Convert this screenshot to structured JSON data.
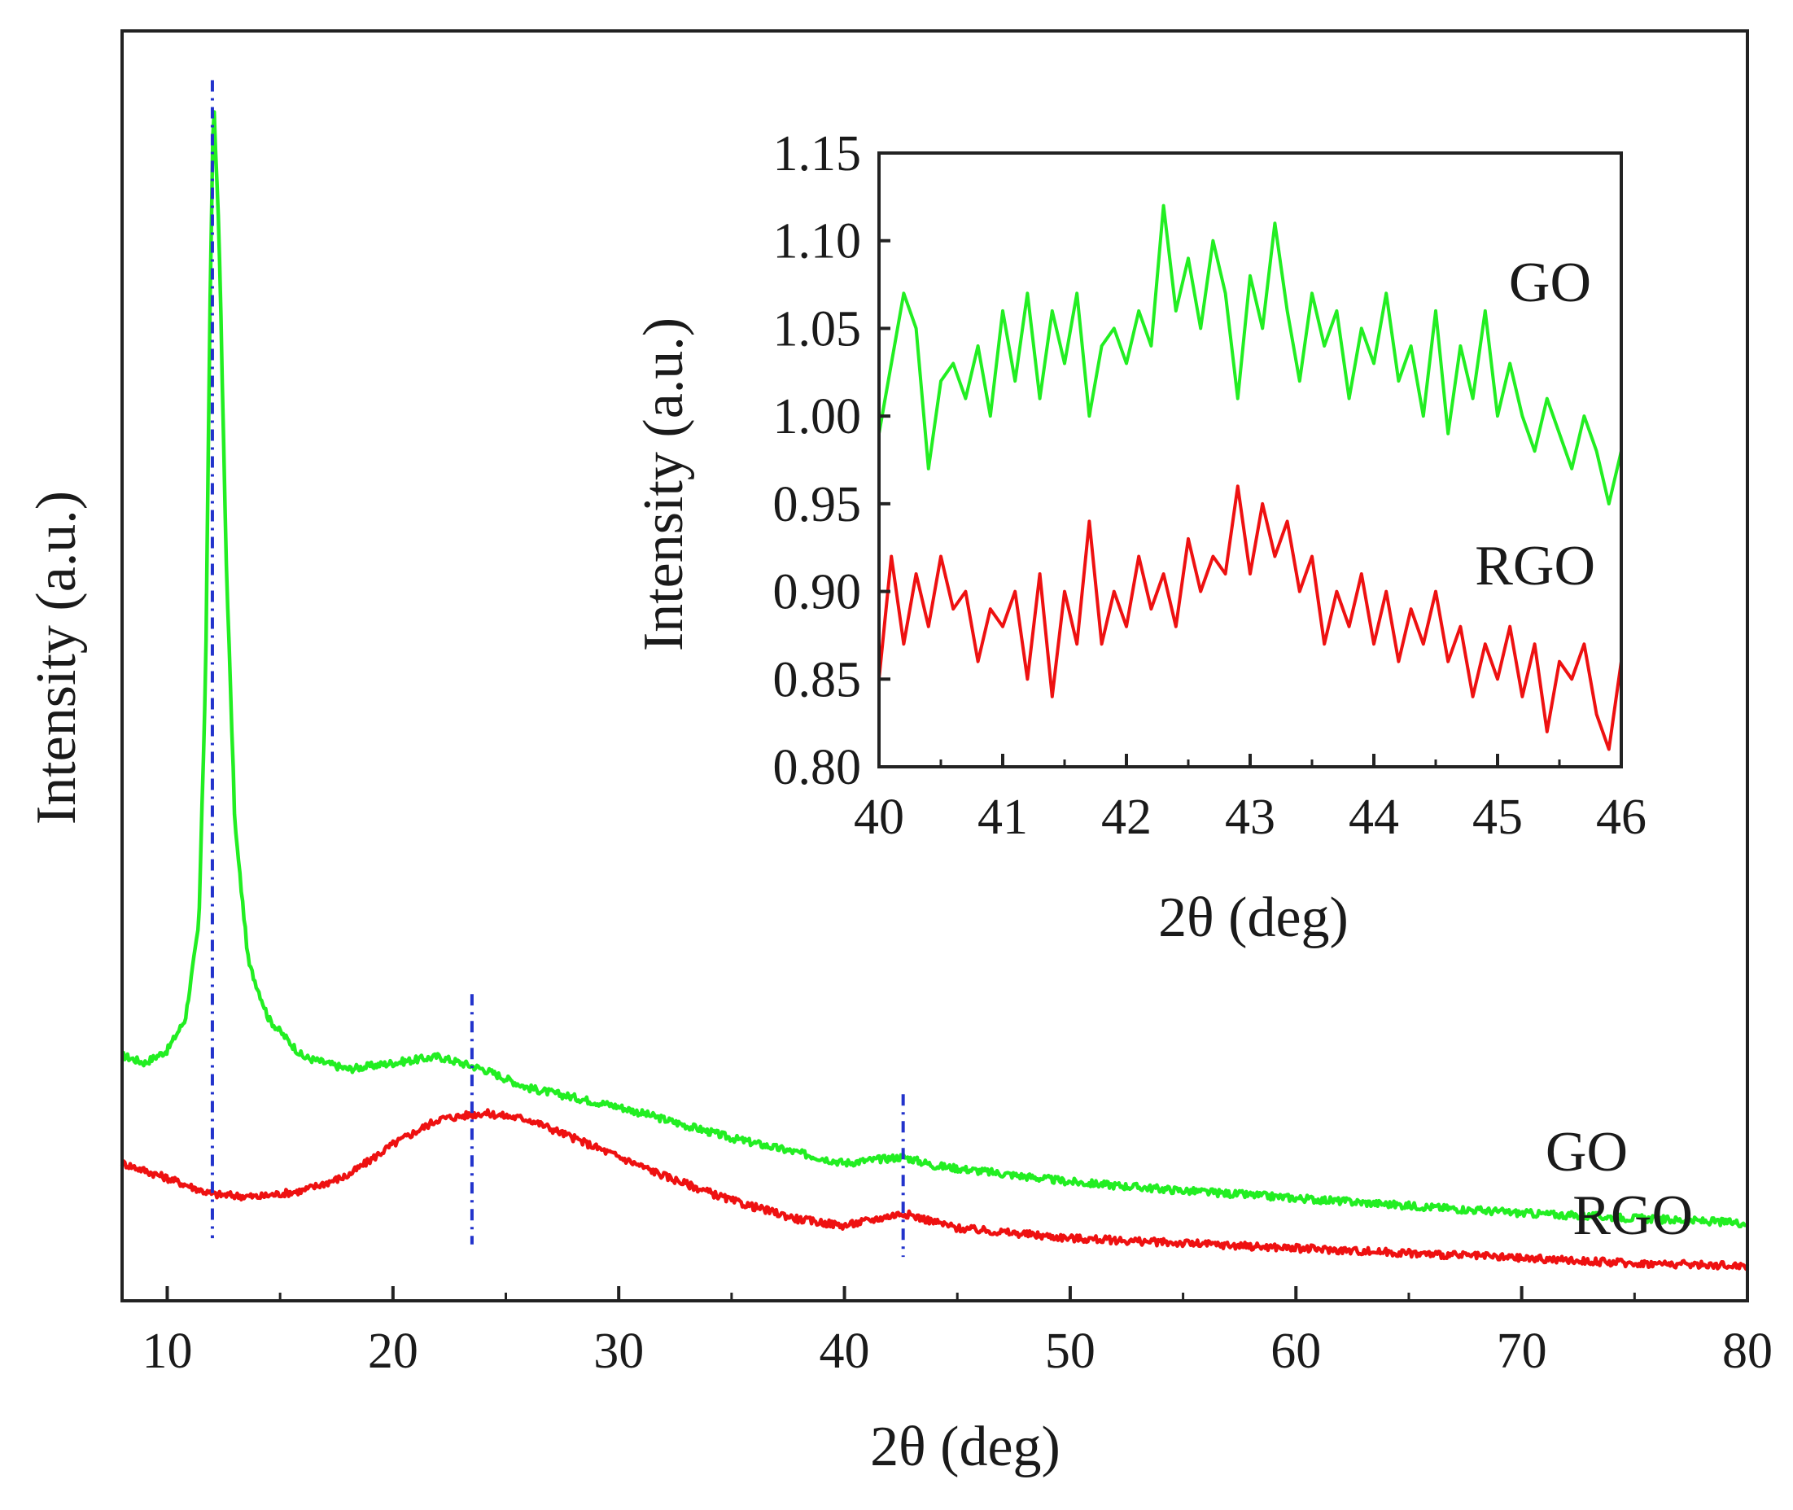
{
  "chart_data": [
    {
      "id": "main",
      "type": "line",
      "title": "",
      "xlabel": "2θ (deg)",
      "ylabel": "Intensity (a.u.)",
      "xlim": [
        8,
        80
      ],
      "ylim": [
        0,
        1
      ],
      "x_ticks": [
        10,
        20,
        30,
        40,
        50,
        60,
        70,
        80
      ],
      "y_ticks": [],
      "y_tick_labels_shown": false,
      "series": [
        {
          "name": "GO",
          "color": "#22ee22",
          "points": [
            [
              8,
              0.196
            ],
            [
              9,
              0.19
            ],
            [
              10,
              0.2
            ],
            [
              10.8,
              0.225
            ],
            [
              11.4,
              0.3
            ],
            [
              11.7,
              0.5
            ],
            [
              11.9,
              0.8
            ],
            [
              12.05,
              0.96
            ],
            [
              12.3,
              0.85
            ],
            [
              12.6,
              0.6
            ],
            [
              13.0,
              0.38
            ],
            [
              13.6,
              0.27
            ],
            [
              14.5,
              0.225
            ],
            [
              16,
              0.195
            ],
            [
              18,
              0.185
            ],
            [
              20,
              0.19
            ],
            [
              22,
              0.195
            ],
            [
              24,
              0.185
            ],
            [
              26,
              0.17
            ],
            [
              30,
              0.155
            ],
            [
              35,
              0.13
            ],
            [
              40,
              0.11
            ],
            [
              42.6,
              0.115
            ],
            [
              44,
              0.108
            ],
            [
              50,
              0.095
            ],
            [
              55,
              0.088
            ],
            [
              60,
              0.082
            ],
            [
              65,
              0.076
            ],
            [
              70,
              0.07
            ],
            [
              75,
              0.066
            ],
            [
              80,
              0.062
            ]
          ]
        },
        {
          "name": "RGO",
          "color": "#ee1111",
          "points": [
            [
              8,
              0.11
            ],
            [
              10,
              0.098
            ],
            [
              12,
              0.085
            ],
            [
              14,
              0.083
            ],
            [
              16,
              0.088
            ],
            [
              18,
              0.1
            ],
            [
              20,
              0.125
            ],
            [
              22,
              0.145
            ],
            [
              24,
              0.15
            ],
            [
              26,
              0.145
            ],
            [
              28,
              0.13
            ],
            [
              30,
              0.115
            ],
            [
              32,
              0.1
            ],
            [
              35,
              0.08
            ],
            [
              38,
              0.065
            ],
            [
              40,
              0.06
            ],
            [
              42.6,
              0.07
            ],
            [
              45,
              0.058
            ],
            [
              50,
              0.05
            ],
            [
              55,
              0.046
            ],
            [
              60,
              0.042
            ],
            [
              65,
              0.038
            ],
            [
              70,
              0.034
            ],
            [
              75,
              0.03
            ],
            [
              80,
              0.028
            ]
          ]
        }
      ],
      "reference_lines": [
        {
          "x": 12.0,
          "y_from": 0.05,
          "y_to": 0.975,
          "color": "#2233cc"
        },
        {
          "x": 23.5,
          "y_from": 0.045,
          "y_to": 0.245,
          "color": "#2233cc"
        },
        {
          "x": 42.6,
          "y_from": 0.035,
          "y_to": 0.165,
          "color": "#2233cc"
        }
      ],
      "annotations": [
        {
          "text": "GO",
          "series": "GO",
          "placement": "right end, above curve"
        },
        {
          "text": "RGO",
          "series": "RGO",
          "placement": "right end, above curve"
        }
      ],
      "grid": false,
      "legend": "none"
    },
    {
      "id": "inset",
      "type": "line",
      "title": "",
      "xlabel": "2θ (deg)",
      "ylabel": "Intensity (a.u.)",
      "xlim": [
        40,
        46
      ],
      "ylim": [
        0.8,
        1.15
      ],
      "x_ticks": [
        40,
        41,
        42,
        43,
        44,
        45,
        46
      ],
      "x_tick_labels": [
        "40",
        "41",
        "42",
        "43",
        "44",
        "45",
        "46"
      ],
      "y_ticks": [
        0.8,
        0.85,
        0.9,
        0.95,
        1.0,
        1.05,
        1.1,
        1.15
      ],
      "y_tick_labels": [
        "0.80",
        "0.85",
        "0.90",
        "0.95",
        "1.00",
        "1.05",
        "1.10",
        "1.15"
      ],
      "series": [
        {
          "name": "GO",
          "color": "#22ee22",
          "points": [
            [
              40.0,
              0.99
            ],
            [
              40.1,
              1.03
            ],
            [
              40.2,
              1.07
            ],
            [
              40.3,
              1.05
            ],
            [
              40.4,
              0.97
            ],
            [
              40.5,
              1.02
            ],
            [
              40.6,
              1.03
            ],
            [
              40.7,
              1.01
            ],
            [
              40.8,
              1.04
            ],
            [
              40.9,
              1.0
            ],
            [
              41.0,
              1.06
            ],
            [
              41.1,
              1.02
            ],
            [
              41.2,
              1.07
            ],
            [
              41.3,
              1.01
            ],
            [
              41.4,
              1.06
            ],
            [
              41.5,
              1.03
            ],
            [
              41.6,
              1.07
            ],
            [
              41.7,
              1.0
            ],
            [
              41.8,
              1.04
            ],
            [
              41.9,
              1.05
            ],
            [
              42.0,
              1.03
            ],
            [
              42.1,
              1.06
            ],
            [
              42.2,
              1.04
            ],
            [
              42.3,
              1.12
            ],
            [
              42.4,
              1.06
            ],
            [
              42.5,
              1.09
            ],
            [
              42.6,
              1.05
            ],
            [
              42.7,
              1.1
            ],
            [
              42.8,
              1.07
            ],
            [
              42.9,
              1.01
            ],
            [
              43.0,
              1.08
            ],
            [
              43.1,
              1.05
            ],
            [
              43.2,
              1.11
            ],
            [
              43.3,
              1.06
            ],
            [
              43.4,
              1.02
            ],
            [
              43.5,
              1.07
            ],
            [
              43.6,
              1.04
            ],
            [
              43.7,
              1.06
            ],
            [
              43.8,
              1.01
            ],
            [
              43.9,
              1.05
            ],
            [
              44.0,
              1.03
            ],
            [
              44.1,
              1.07
            ],
            [
              44.2,
              1.02
            ],
            [
              44.3,
              1.04
            ],
            [
              44.4,
              1.0
            ],
            [
              44.5,
              1.06
            ],
            [
              44.6,
              0.99
            ],
            [
              44.7,
              1.04
            ],
            [
              44.8,
              1.01
            ],
            [
              44.9,
              1.06
            ],
            [
              45.0,
              1.0
            ],
            [
              45.1,
              1.03
            ],
            [
              45.2,
              1.0
            ],
            [
              45.3,
              0.98
            ],
            [
              45.4,
              1.01
            ],
            [
              45.5,
              0.99
            ],
            [
              45.6,
              0.97
            ],
            [
              45.7,
              1.0
            ],
            [
              45.8,
              0.98
            ],
            [
              45.9,
              0.95
            ],
            [
              46.0,
              0.98
            ]
          ]
        },
        {
          "name": "RGO",
          "color": "#ee1111",
          "points": [
            [
              40.0,
              0.85
            ],
            [
              40.1,
              0.92
            ],
            [
              40.2,
              0.87
            ],
            [
              40.3,
              0.91
            ],
            [
              40.4,
              0.88
            ],
            [
              40.5,
              0.92
            ],
            [
              40.6,
              0.89
            ],
            [
              40.7,
              0.9
            ],
            [
              40.8,
              0.86
            ],
            [
              40.9,
              0.89
            ],
            [
              41.0,
              0.88
            ],
            [
              41.1,
              0.9
            ],
            [
              41.2,
              0.85
            ],
            [
              41.3,
              0.91
            ],
            [
              41.4,
              0.84
            ],
            [
              41.5,
              0.9
            ],
            [
              41.6,
              0.87
            ],
            [
              41.7,
              0.94
            ],
            [
              41.8,
              0.87
            ],
            [
              41.9,
              0.9
            ],
            [
              42.0,
              0.88
            ],
            [
              42.1,
              0.92
            ],
            [
              42.2,
              0.89
            ],
            [
              42.3,
              0.91
            ],
            [
              42.4,
              0.88
            ],
            [
              42.5,
              0.93
            ],
            [
              42.6,
              0.9
            ],
            [
              42.7,
              0.92
            ],
            [
              42.8,
              0.91
            ],
            [
              42.9,
              0.96
            ],
            [
              43.0,
              0.91
            ],
            [
              43.1,
              0.95
            ],
            [
              43.2,
              0.92
            ],
            [
              43.3,
              0.94
            ],
            [
              43.4,
              0.9
            ],
            [
              43.5,
              0.92
            ],
            [
              43.6,
              0.87
            ],
            [
              43.7,
              0.9
            ],
            [
              43.8,
              0.88
            ],
            [
              43.9,
              0.91
            ],
            [
              44.0,
              0.87
            ],
            [
              44.1,
              0.9
            ],
            [
              44.2,
              0.86
            ],
            [
              44.3,
              0.89
            ],
            [
              44.4,
              0.87
            ],
            [
              44.5,
              0.9
            ],
            [
              44.6,
              0.86
            ],
            [
              44.7,
              0.88
            ],
            [
              44.8,
              0.84
            ],
            [
              44.9,
              0.87
            ],
            [
              45.0,
              0.85
            ],
            [
              45.1,
              0.88
            ],
            [
              45.2,
              0.84
            ],
            [
              45.3,
              0.87
            ],
            [
              45.4,
              0.82
            ],
            [
              45.5,
              0.86
            ],
            [
              45.6,
              0.85
            ],
            [
              45.7,
              0.87
            ],
            [
              45.8,
              0.83
            ],
            [
              45.9,
              0.81
            ],
            [
              46.0,
              0.86
            ]
          ]
        }
      ],
      "annotations": [
        {
          "text": "GO",
          "series": "GO",
          "placement": "upper right"
        },
        {
          "text": "RGO",
          "series": "RGO",
          "placement": "right, middle"
        }
      ],
      "grid": false,
      "legend": "none"
    }
  ]
}
